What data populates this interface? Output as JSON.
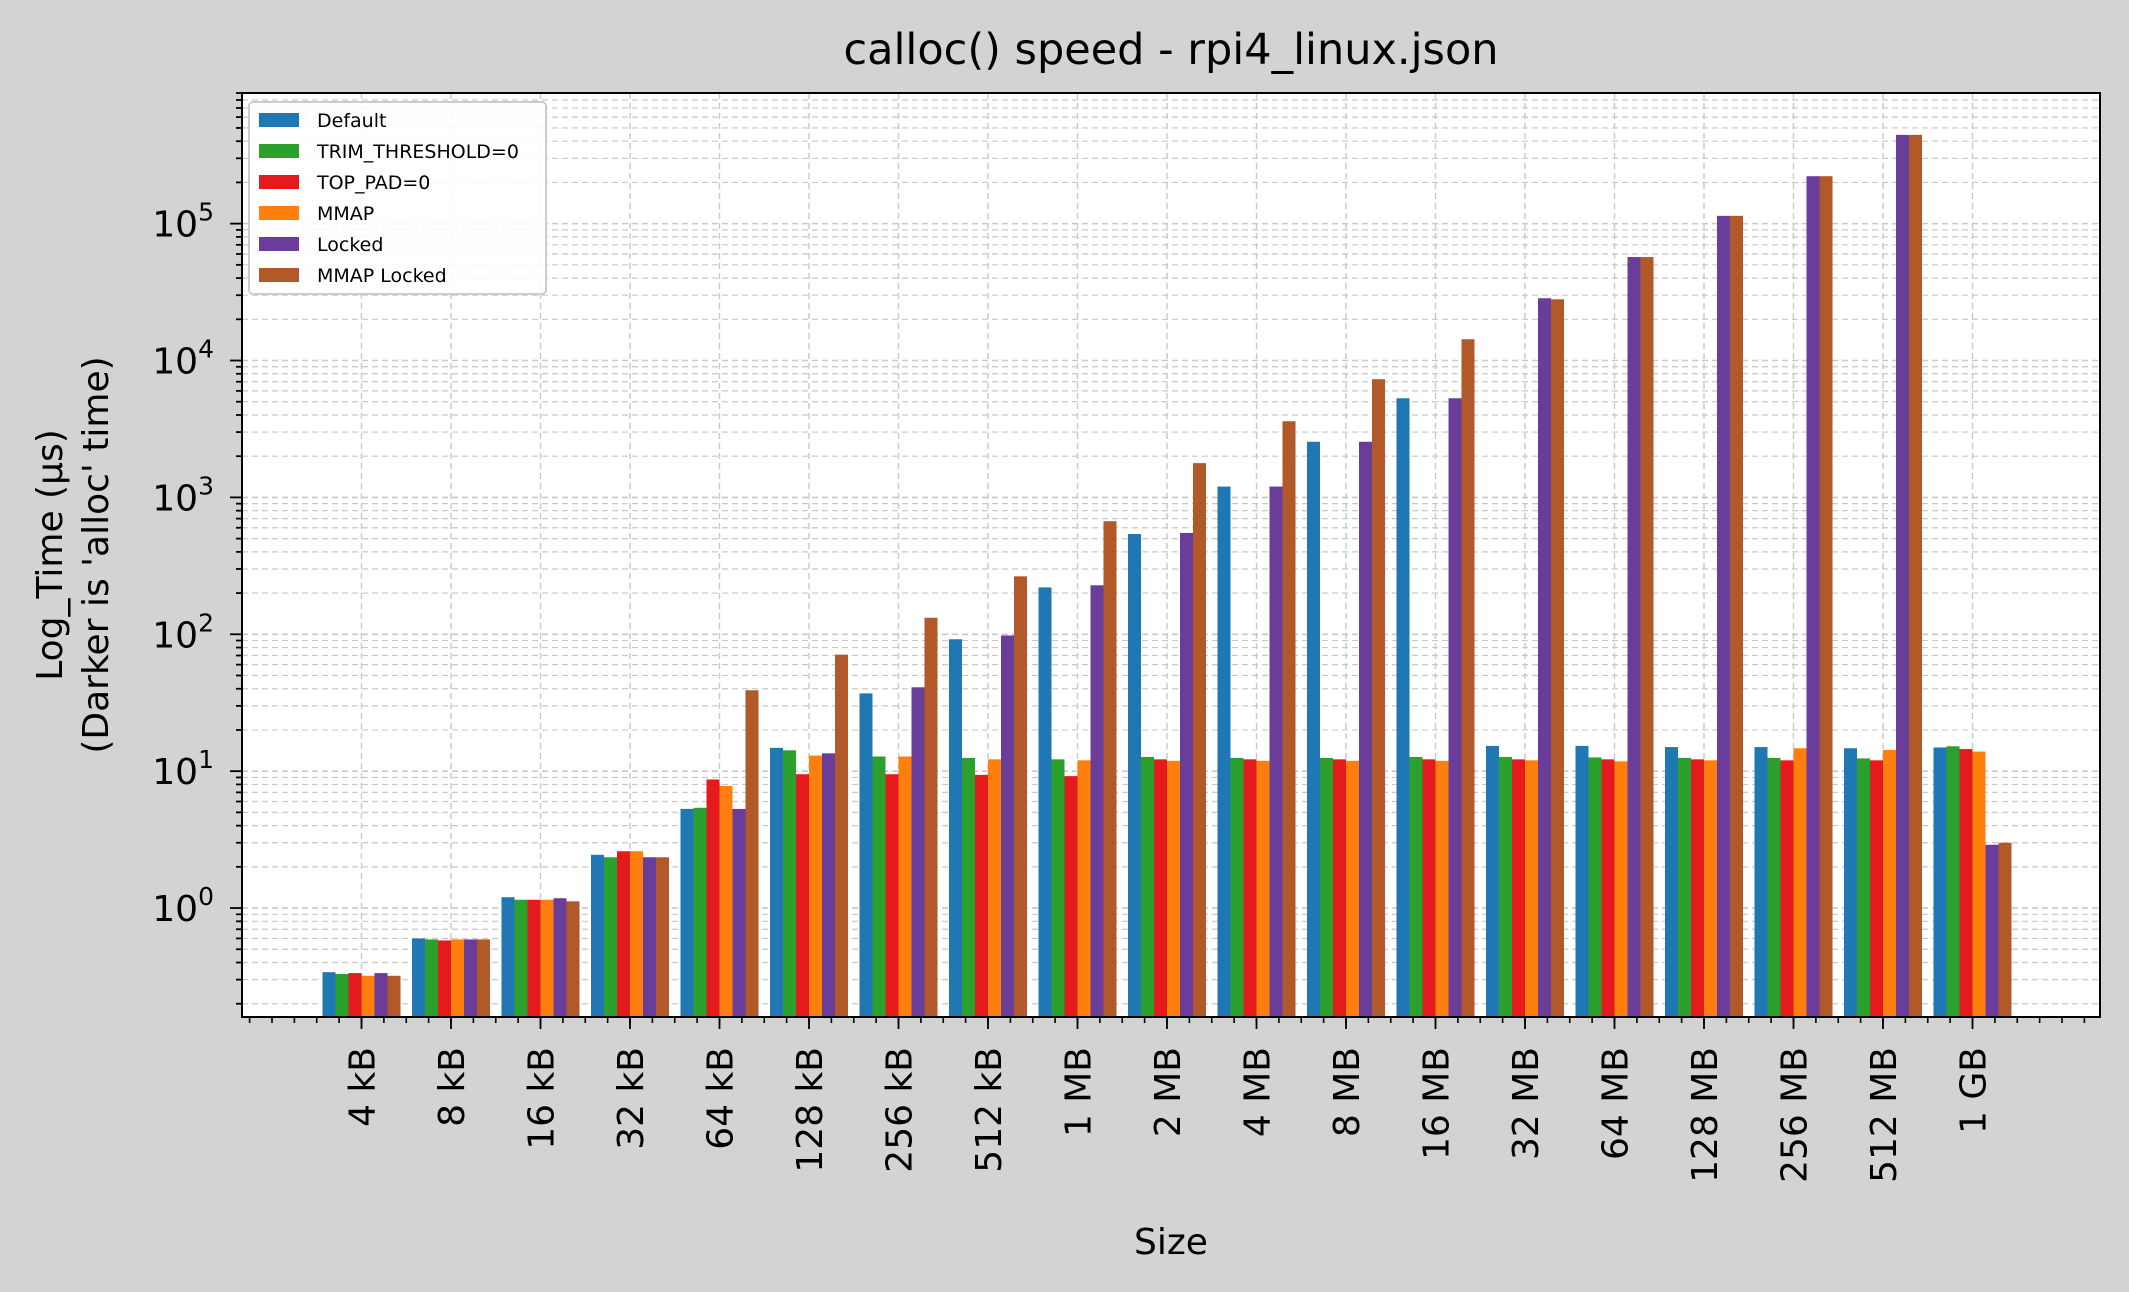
{
  "chart_data": {
    "type": "bar",
    "title": "calloc() speed - rpi4_linux.json",
    "xlabel": "Size",
    "ylabel": [
      "Log_Time (µs)",
      "(Darker is 'alloc' time)"
    ],
    "yscale": "log",
    "ylim": [
      0.16,
      900000
    ],
    "grid": true,
    "legend_position": "top-left",
    "y_ticks": [
      {
        "value": 1,
        "base": "10",
        "exp": "0"
      },
      {
        "value": 10,
        "base": "10",
        "exp": "1"
      },
      {
        "value": 100,
        "base": "10",
        "exp": "2"
      },
      {
        "value": 1000,
        "base": "10",
        "exp": "3"
      },
      {
        "value": 10000,
        "base": "10",
        "exp": "4"
      },
      {
        "value": 100000,
        "base": "10",
        "exp": "5"
      }
    ],
    "categories": [
      "4 kB",
      "8 kB",
      "16 kB",
      "32 kB",
      "64 kB",
      "128 kB",
      "256 kB",
      "512 kB",
      "1 MB",
      "2 MB",
      "4 MB",
      "8 MB",
      "16 MB",
      "32 MB",
      "64 MB",
      "128 MB",
      "256 MB",
      "512 MB",
      "1 GB"
    ],
    "series": [
      {
        "name": "Default",
        "color": "#1f77b4",
        "values": [
          0.34,
          0.6,
          1.2,
          2.45,
          5.3,
          14.8,
          37,
          92,
          220,
          540,
          1200,
          2550,
          5300,
          15.3,
          15.3,
          15,
          15,
          14.7,
          14.9
        ]
      },
      {
        "name": "TRIM_THRESHOLD=0",
        "color": "#2ca02c",
        "values": [
          0.33,
          0.59,
          1.15,
          2.35,
          5.4,
          14.2,
          12.8,
          12.5,
          12.2,
          12.7,
          12.5,
          12.5,
          12.7,
          12.7,
          12.6,
          12.5,
          12.5,
          12.4,
          15.2
        ]
      },
      {
        "name": "TOP_PAD=0",
        "color": "#e41a1c",
        "values": [
          0.335,
          0.58,
          1.15,
          2.6,
          8.7,
          9.5,
          9.5,
          9.4,
          9.2,
          12.2,
          12.2,
          12.2,
          12.2,
          12.2,
          12.2,
          12.2,
          12,
          12,
          14.5
        ]
      },
      {
        "name": "MMAP",
        "color": "#ff7f0e",
        "values": [
          0.32,
          0.59,
          1.15,
          2.6,
          7.8,
          13,
          12.8,
          12.2,
          12,
          11.9,
          11.9,
          11.9,
          11.9,
          12,
          11.8,
          12,
          14.7,
          14.3,
          13.9
        ]
      },
      {
        "name": "Locked",
        "color": "#6a3d9a",
        "values": [
          0.335,
          0.59,
          1.18,
          2.35,
          5.3,
          13.5,
          41,
          98,
          228,
          550,
          1200,
          2550,
          5300,
          28500,
          57000,
          114000,
          222000,
          445000,
          2.9
        ]
      },
      {
        "name": "MMAP Locked",
        "color": "#b15928",
        "values": [
          0.32,
          0.59,
          1.12,
          2.35,
          39,
          71,
          132,
          265,
          670,
          1780,
          3600,
          7300,
          14300,
          28000,
          57000,
          114000,
          222000,
          445000,
          3.0
        ]
      }
    ]
  }
}
